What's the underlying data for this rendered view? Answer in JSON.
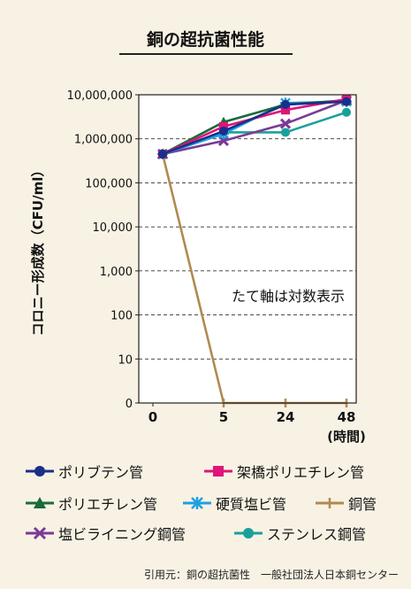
{
  "chart_data": {
    "type": "line",
    "title": "銅の超抗菌性能",
    "ylabel": "コロニー形成数（CFU/ml）",
    "xlabel": "(時間)",
    "yscale": "log",
    "y_tick_labels": [
      "0",
      "10",
      "100",
      "1,000",
      "10,000",
      "100,000",
      "1,000,000",
      "10,000,000"
    ],
    "x_tick_labels": [
      "0",
      "5",
      "24",
      "48"
    ],
    "x_ticks": [
      0,
      5,
      24,
      48
    ],
    "annotation": "たて軸は対数表示",
    "grid": true,
    "series": [
      {
        "name": "ポリブテン管",
        "color": "#1a2f8a",
        "marker": "circle",
        "x": [
          1,
          5,
          24,
          48
        ],
        "y": [
          450000,
          1500000,
          6000000,
          7000000
        ]
      },
      {
        "name": "架橋ポリエチレン管",
        "color": "#e0147a",
        "marker": "square",
        "x": [
          1,
          5,
          24,
          48
        ],
        "y": [
          450000,
          1900000,
          4500000,
          8000000
        ]
      },
      {
        "name": "ポリエチレン管",
        "color": "#1a6b3a",
        "marker": "triangle",
        "x": [
          1,
          5,
          24,
          48
        ],
        "y": [
          450000,
          2400000,
          6000000,
          7500000
        ]
      },
      {
        "name": "硬質塩ビ管",
        "color": "#1fa0e0",
        "marker": "star",
        "x": [
          1,
          5,
          24,
          48
        ],
        "y": [
          450000,
          1300000,
          6500000,
          7000000
        ]
      },
      {
        "name": "銅管",
        "color": "#b08a50",
        "marker": "tick",
        "x": [
          1,
          5,
          24,
          48
        ],
        "y": [
          450000,
          0,
          0,
          0
        ]
      },
      {
        "name": "塩ビライニング鋼管",
        "color": "#7a3a96",
        "marker": "x",
        "x": [
          1,
          5,
          24,
          48
        ],
        "y": [
          450000,
          900000,
          2200000,
          7500000
        ]
      },
      {
        "name": "ステンレス鋼管",
        "color": "#1aa09a",
        "marker": "circle",
        "x": [
          1,
          5,
          24,
          48
        ],
        "y": [
          450000,
          1400000,
          1400000,
          4000000
        ]
      }
    ]
  },
  "source": "引用元：銅の超抗菌性　一般社団法人日本銅センター"
}
